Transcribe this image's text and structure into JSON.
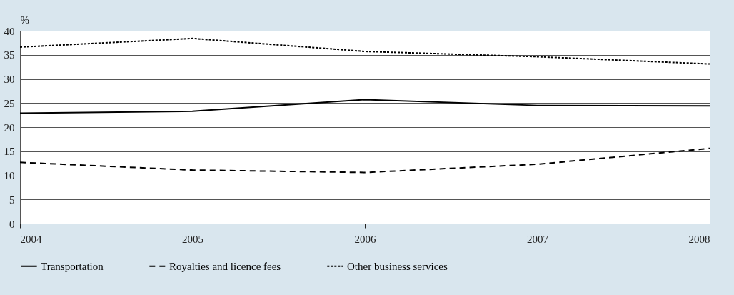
{
  "chart_data": {
    "type": "line",
    "ylabel": "%",
    "x": [
      2004,
      2005,
      2006,
      2007,
      2008
    ],
    "xlim": [
      2004,
      2008
    ],
    "xticks": [
      2004,
      2005,
      2006,
      2007,
      2008
    ],
    "ylim": [
      0,
      40
    ],
    "yticks": [
      0,
      5,
      10,
      15,
      20,
      25,
      30,
      35,
      40
    ],
    "grid": "y",
    "legend": "bottom",
    "series": [
      {
        "name": "Transportation",
        "color": "#000000",
        "line_style": "solid",
        "values": [
          22.9,
          23.3,
          25.7,
          24.5,
          24.4
        ]
      },
      {
        "name": "Royalties and licence fees",
        "color": "#000000",
        "line_style": "dashed",
        "values": [
          12.7,
          11.1,
          10.6,
          12.3,
          15.6
        ]
      },
      {
        "name": "Other business services",
        "color": "#000000",
        "line_style": "dotted",
        "values": [
          36.6,
          38.4,
          35.7,
          34.6,
          33.1
        ]
      }
    ]
  }
}
